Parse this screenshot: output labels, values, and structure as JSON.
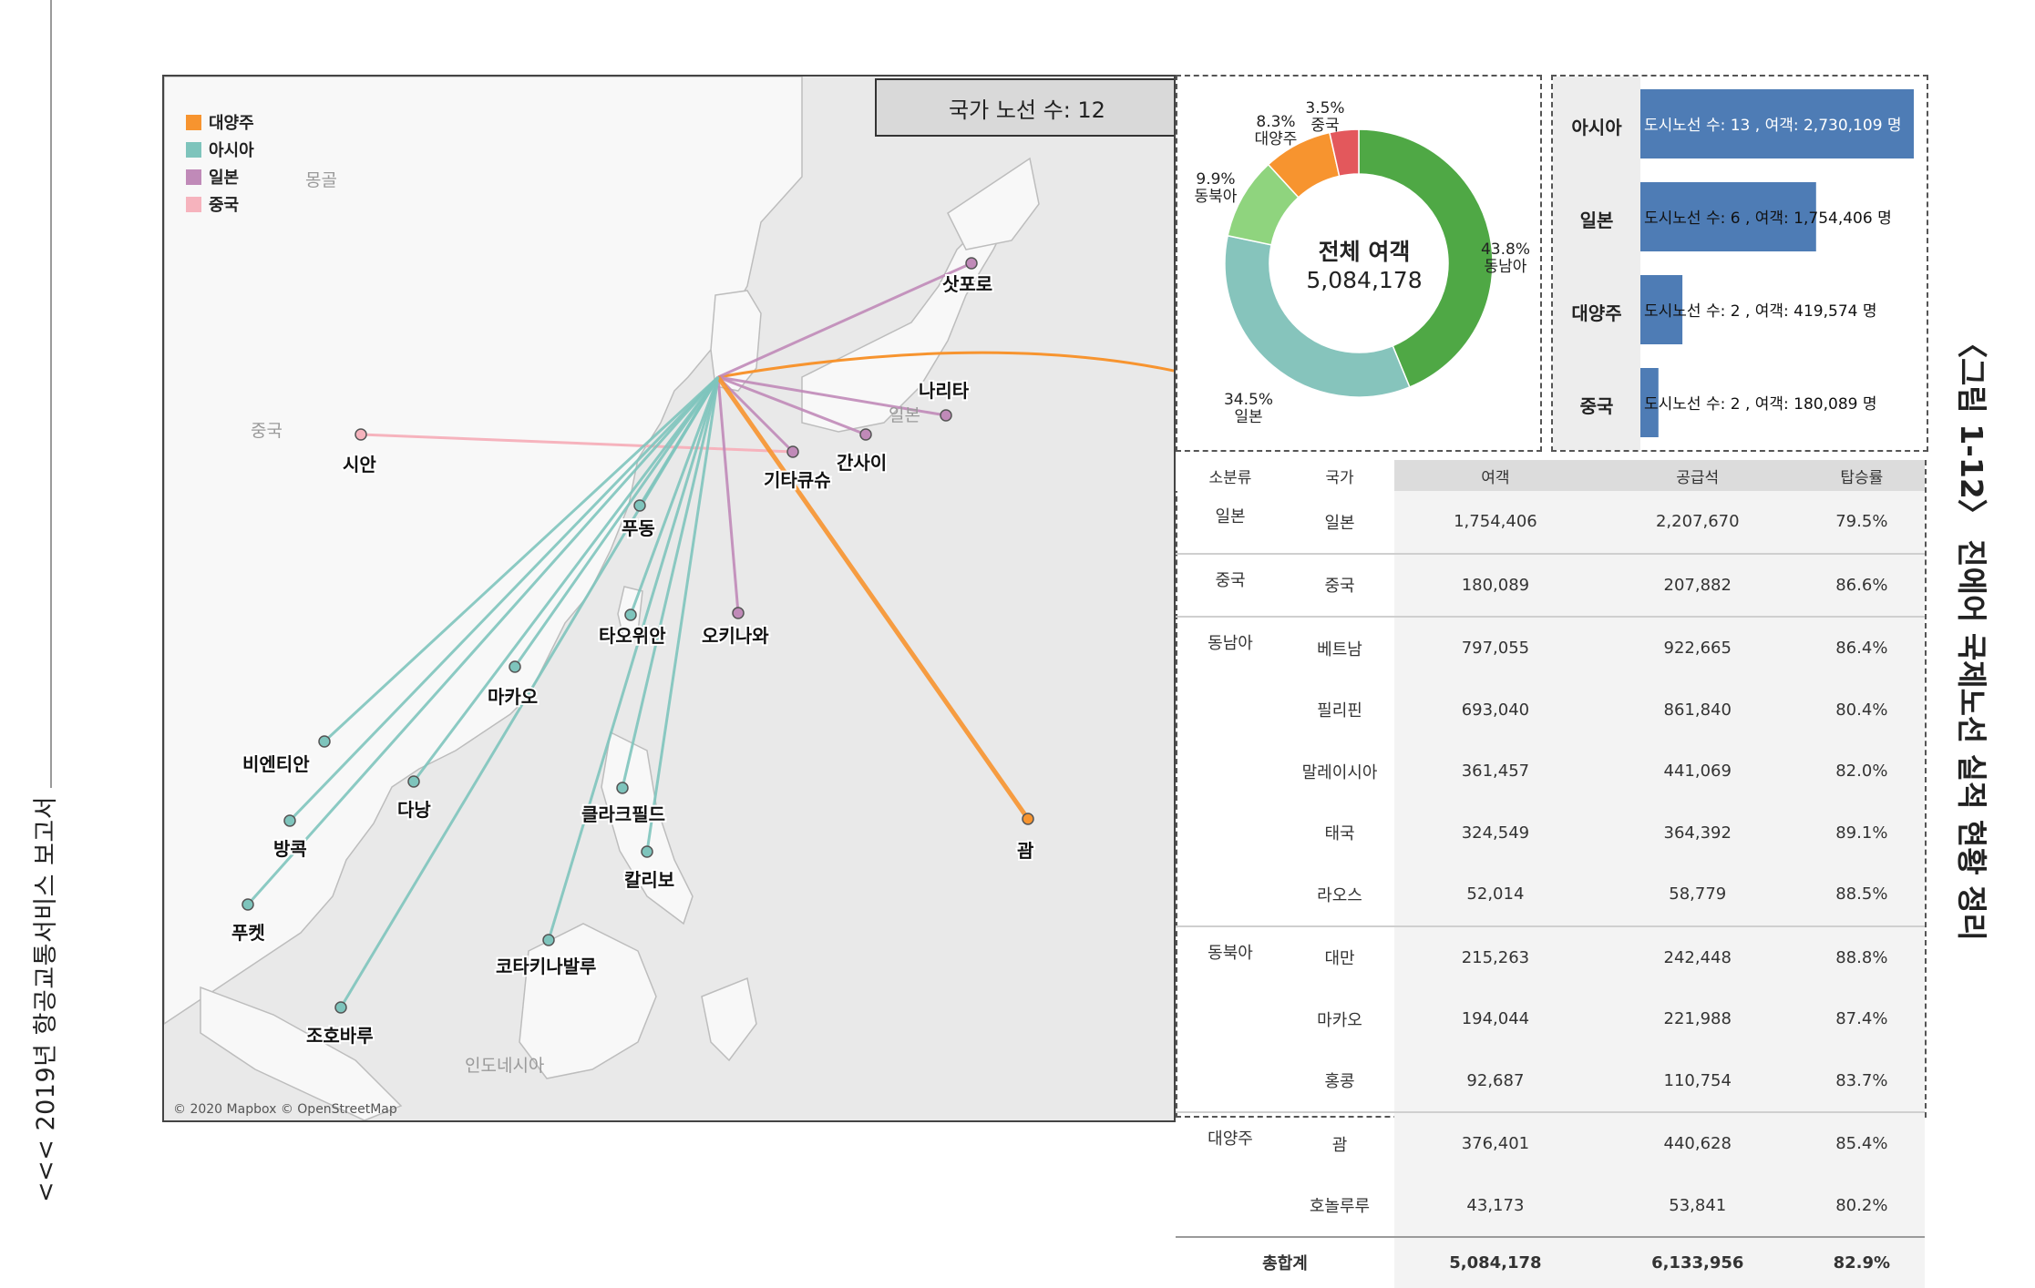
{
  "side_title": "<<< 2019년 항공교통서비스 보고서",
  "figure_title": "〈그림 1-12〉 진에어 국제노선 실적 현황 정리",
  "map": {
    "route_count_label": "국가 노선 수: 12",
    "attribution": "© 2020 Mapbox © OpenStreetMap",
    "legend": [
      {
        "label": "대양주",
        "color": "#f7942f"
      },
      {
        "label": "아시아",
        "color": "#7ec4bc"
      },
      {
        "label": "일본",
        "color": "#c08ab8"
      },
      {
        "label": "중국",
        "color": "#f6b3bd"
      }
    ],
    "regions": [
      "몽골",
      "중국",
      "일본",
      "인도네시아"
    ],
    "cities": [
      "삿포로",
      "나리타",
      "간사이",
      "기타큐슈",
      "시안",
      "푸동",
      "오키나와",
      "타오위안",
      "마카오",
      "비엔티안",
      "다낭",
      "방콕",
      "클라크필드",
      "칼리보",
      "괌",
      "푸켓",
      "코타키나발루",
      "조호바루"
    ]
  },
  "chart_data": [
    {
      "type": "pie",
      "title": "전체 여객",
      "total": "5,084,178",
      "slices": [
        {
          "name": "동남아",
          "value": 43.8,
          "label": "43.8%",
          "color": "#4fa845"
        },
        {
          "name": "일본",
          "value": 34.5,
          "label": "34.5%",
          "color": "#86c4bc"
        },
        {
          "name": "동북아",
          "value": 9.9,
          "label": "9.9%",
          "color": "#8fd47e"
        },
        {
          "name": "대양주",
          "value": 8.3,
          "label": "8.3%",
          "color": "#f7942f"
        },
        {
          "name": "중국",
          "value": 3.5,
          "label": "3.5%",
          "color": "#e3585c"
        }
      ]
    },
    {
      "type": "bar",
      "categories": [
        "아시아",
        "일본",
        "대양주",
        "중국"
      ],
      "values": [
        2730109,
        1754406,
        419574,
        180089
      ],
      "routes": [
        13,
        6,
        2,
        2
      ],
      "labels": [
        "도시노선 수: 13 , 여객: 2,730,109 명",
        "도시노선 수: 6 , 여객: 1,754,406 명",
        "도시노선 수: 2 , 여객: 419,574 명",
        "도시노선 수: 2 , 여객: 180,089 명"
      ],
      "color": "#4e7cb5"
    },
    {
      "type": "table",
      "headers": [
        "소분류",
        "국가",
        "여객",
        "공급석",
        "탑승률"
      ],
      "rows": [
        [
          "일본",
          "일본",
          "1,754,406",
          "2,207,670",
          "79.5%"
        ],
        [
          "중국",
          "중국",
          "180,089",
          "207,882",
          "86.6%"
        ],
        [
          "동남아",
          "베트남",
          "797,055",
          "922,665",
          "86.4%"
        ],
        [
          "",
          "필리핀",
          "693,040",
          "861,840",
          "80.4%"
        ],
        [
          "",
          "말레이시아",
          "361,457",
          "441,069",
          "82.0%"
        ],
        [
          "",
          "태국",
          "324,549",
          "364,392",
          "89.1%"
        ],
        [
          "",
          "라오스",
          "52,014",
          "58,779",
          "88.5%"
        ],
        [
          "동북아",
          "대만",
          "215,263",
          "242,448",
          "88.8%"
        ],
        [
          "",
          "마카오",
          "194,044",
          "221,988",
          "87.4%"
        ],
        [
          "",
          "홍콩",
          "92,687",
          "110,754",
          "83.7%"
        ],
        [
          "대양주",
          "괌",
          "376,401",
          "440,628",
          "85.4%"
        ],
        [
          "",
          "호놀루루",
          "43,173",
          "53,841",
          "80.2%"
        ]
      ],
      "total": [
        "총합계",
        "5,084,178",
        "6,133,956",
        "82.9%"
      ]
    }
  ]
}
